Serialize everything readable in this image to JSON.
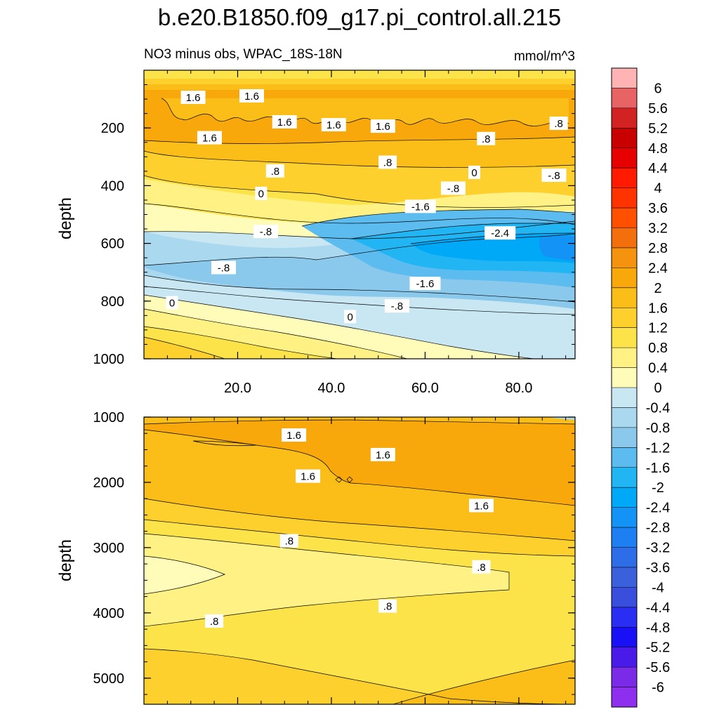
{
  "title": "b.e20.B1850.f09_g17.pi_control.all.215",
  "chart_data": {
    "type": "heatmap",
    "variable_label": "NO3 minus obs, WPAC_18S-18N",
    "units": "mmol/m^3",
    "x_axis": {
      "range": [
        0,
        92
      ],
      "ticks": [
        20,
        40,
        60,
        80
      ],
      "tick_labels": [
        "20.0",
        "40.0",
        "60.0",
        "80.0"
      ]
    },
    "panels": [
      {
        "name": "upper",
        "ylabel": "depth",
        "ylim": [
          0,
          1000
        ],
        "yticks": [
          200,
          400,
          600,
          800,
          1000
        ],
        "ytick_labels": [
          "200",
          "400",
          "600",
          "800",
          "1000"
        ],
        "contour_labels": [
          {
            "x": 10.5,
            "y": 95,
            "text": "1.6"
          },
          {
            "x": 23,
            "y": 90,
            "text": "1.6"
          },
          {
            "x": 30,
            "y": 180,
            "text": "1.6"
          },
          {
            "x": 14,
            "y": 235,
            "text": "1.6"
          },
          {
            "x": 40.5,
            "y": 190,
            "text": "1.6"
          },
          {
            "x": 51,
            "y": 195,
            "text": "1.6"
          },
          {
            "x": 88.5,
            "y": 185,
            "text": ".8"
          },
          {
            "x": 73,
            "y": 238,
            "text": ".8"
          },
          {
            "x": 52,
            "y": 320,
            "text": ".8"
          },
          {
            "x": 28,
            "y": 350,
            "text": ".8"
          },
          {
            "x": 70.5,
            "y": 355,
            "text": "0"
          },
          {
            "x": 66,
            "y": 410,
            "text": "-.8"
          },
          {
            "x": 87.5,
            "y": 365,
            "text": "-.8"
          },
          {
            "x": 25,
            "y": 428,
            "text": "0"
          },
          {
            "x": 59,
            "y": 473,
            "text": "-1.6"
          },
          {
            "x": 26,
            "y": 560,
            "text": "-.8"
          },
          {
            "x": 76,
            "y": 565,
            "text": "-2.4"
          },
          {
            "x": 17,
            "y": 685,
            "text": "-.8"
          },
          {
            "x": 60,
            "y": 740,
            "text": "-1.6"
          },
          {
            "x": 54,
            "y": 818,
            "text": "-.8"
          },
          {
            "x": 6,
            "y": 807,
            "text": "0"
          },
          {
            "x": 44,
            "y": 855,
            "text": "0"
          }
        ]
      },
      {
        "name": "lower",
        "ylabel": "depth",
        "ylim": [
          1000,
          5400
        ],
        "yticks": [
          1000,
          2000,
          3000,
          4000,
          5000
        ],
        "ytick_labels": [
          "1000",
          "2000",
          "3000",
          "4000",
          "5000"
        ],
        "contour_labels": [
          {
            "x": 32,
            "y": 1280,
            "text": "1.6"
          },
          {
            "x": 51,
            "y": 1580,
            "text": "1.6"
          },
          {
            "x": 35,
            "y": 1910,
            "text": "1.6"
          },
          {
            "x": 72,
            "y": 2360,
            "text": "1.6"
          },
          {
            "x": 31,
            "y": 2900,
            "text": ".8"
          },
          {
            "x": 72,
            "y": 3300,
            "text": ".8"
          },
          {
            "x": 52,
            "y": 3900,
            "text": ".8"
          },
          {
            "x": 15,
            "y": 4130,
            "text": ".8"
          }
        ]
      }
    ],
    "colorbar": {
      "levels": [
        "6",
        "5.6",
        "5.2",
        "4.8",
        "4.4",
        "4",
        "3.6",
        "3.2",
        "2.8",
        "2.4",
        "2",
        "1.6",
        "1.2",
        "0.8",
        "0.4",
        "0",
        "-0.4",
        "-0.8",
        "-1.2",
        "-1.6",
        "-2",
        "-2.4",
        "-2.8",
        "-3.2",
        "-3.6",
        "-4",
        "-4.4",
        "-4.8",
        "-5.2",
        "-5.6",
        "-6"
      ],
      "colors": [
        "#ffb3b3",
        "#e86464",
        "#d22222",
        "#c80000",
        "#e60000",
        "#ff1a00",
        "#ff3300",
        "#ff5000",
        "#f26f0c",
        "#f5930e",
        "#f8a80a",
        "#fbbd18",
        "#fdd02e",
        "#fde34a",
        "#fff184",
        "#fffbb8",
        "#c9e7f2",
        "#a9d8ef",
        "#8ac8ec",
        "#5cbcf0",
        "#21b6f3",
        "#00a9f8",
        "#1493f7",
        "#1d7ff2",
        "#2d6de8",
        "#3a60dc",
        "#3a4ede",
        "#2a2ef2",
        "#1a10f6",
        "#4a1ae8",
        "#7b2be8",
        "#8e2ff0"
      ]
    },
    "colors": {
      "upper_panel_fill_sequence": [
        "#fde34a",
        "#fdd02e",
        "#fbbd18",
        "#f8a80a",
        "#fbbd18",
        "#fdd02e",
        "#fde34a",
        "#fff184",
        "#fffbb8",
        "#c9e7f2",
        "#a9d8ef",
        "#8ac8ec",
        "#5cbcf0",
        "#21b6f3",
        "#00a9f8",
        "#1493f7"
      ],
      "lower_panel_fill_sequence": [
        "#a9d8ef",
        "#fde34a",
        "#fdd02e",
        "#fbbd18",
        "#f8a80a",
        "#fbbd18",
        "#fdd02e",
        "#fde34a",
        "#fff184"
      ]
    }
  }
}
